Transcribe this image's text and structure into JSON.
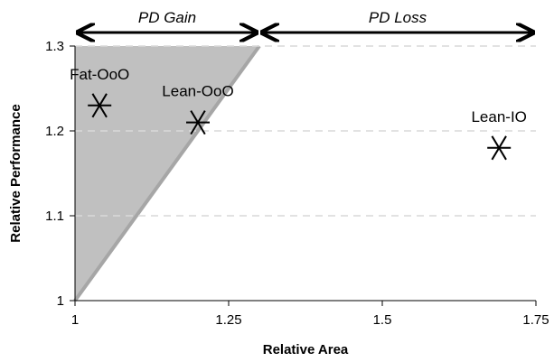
{
  "chart_data": {
    "type": "scatter",
    "title": "",
    "xlabel": "Relative Area",
    "ylabel": "Relative Performance",
    "xlim": [
      1,
      1.75
    ],
    "ylim": [
      1,
      1.3
    ],
    "xticks": [
      "1",
      "1.25",
      "1.5",
      "1.75"
    ],
    "yticks": [
      "1",
      "1.1",
      "1.2",
      "1.3"
    ],
    "grid": "horizontal dashed",
    "points": [
      {
        "label": "Fat-OoO",
        "x": 1.04,
        "y": 1.23
      },
      {
        "label": "Lean-OoO",
        "x": 1.2,
        "y": 1.21
      },
      {
        "label": "Lean-IO",
        "x": 1.69,
        "y": 1.18
      }
    ],
    "shaded_region": {
      "description": "y/x >= 1 region",
      "boundary": [
        [
          1,
          1
        ],
        [
          1.3,
          1.3
        ]
      ]
    },
    "annotations": [
      {
        "text": "PD Gain",
        "x_from": 1,
        "x_to": 1.3
      },
      {
        "text": "PD Loss",
        "x_from": 1.3,
        "x_to": 1.75
      }
    ],
    "colors": {
      "shade": "#c0c0c0",
      "diagonal": "#a6a6a6",
      "grid": "#d9d9d9"
    }
  }
}
